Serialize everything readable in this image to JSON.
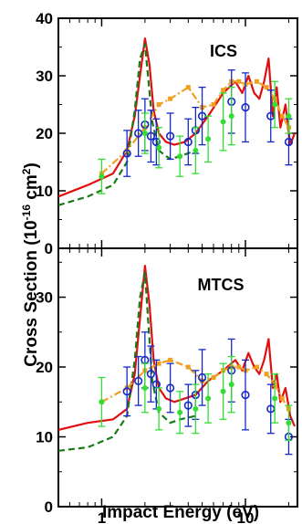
{
  "figure": {
    "ylabel_main": "Cross Section (10",
    "ylabel_exp": "-16",
    "ylabel_unit": " cm",
    "ylabel_exp2": "2",
    "ylabel_close": ")",
    "xlabel": "Impact Energy (eV)"
  },
  "colors": {
    "red_line": "#e01010",
    "green_dash": "#1a7a1a",
    "orange_dashdot": "#f0a020",
    "blue_circles": "#1428c8",
    "green_points": "#33dd33"
  },
  "chart_data": [
    {
      "type": "line",
      "panel": "top",
      "annotation": "ICS",
      "x_scale": "log",
      "xlim": [
        0.5,
        23
      ],
      "ylim": [
        0,
        40
      ],
      "yticks": [
        "0",
        "10",
        "20",
        "30",
        "40"
      ],
      "xticks": [],
      "series": [
        {
          "style": "solid",
          "color": "#e01010",
          "x": [
            0.5,
            0.8,
            1.2,
            1.5,
            1.7,
            1.85,
            2.0,
            2.15,
            2.3,
            2.5,
            2.8,
            3.2,
            3.8,
            4.5,
            5.5,
            7,
            8.5,
            9.5,
            10.5,
            11.5,
            12.5,
            13.5,
            14.5,
            15.5,
            16.5,
            17.5,
            19,
            20.5,
            22
          ],
          "y": [
            9,
            11,
            13,
            17,
            23,
            30,
            36.5,
            32,
            24,
            20,
            18.5,
            18,
            18.5,
            20,
            23,
            27,
            29,
            27,
            30,
            27,
            26,
            29,
            33,
            23,
            28,
            21,
            25,
            18,
            20
          ]
        },
        {
          "style": "dashed",
          "color": "#1a7a1a",
          "x": [
            0.5,
            0.8,
            1.2,
            1.5,
            1.7,
            1.85,
            2.0,
            2.1,
            2.25,
            2.5,
            3.0,
            3.5,
            4.5
          ],
          "y": [
            7.5,
            9,
            11,
            15,
            24,
            33,
            35.5,
            30,
            22,
            17,
            15.5,
            16,
            17
          ]
        },
        {
          "style": "dashdot",
          "color": "#f0a020",
          "x": [
            1.0,
            1.5,
            2.0,
            2.5,
            3.0,
            4.0,
            5.0,
            6.0,
            7.0,
            8.0,
            9.0,
            10.0,
            12.0,
            14.0,
            16.0,
            18.0,
            20.0
          ],
          "y": [
            13,
            17,
            21,
            25,
            26,
            28,
            24.5,
            25,
            27.5,
            29,
            29,
            28.5,
            29,
            28,
            26,
            23,
            21
          ]
        },
        {
          "style": "open-circles",
          "color": "#1428c8",
          "x": [
            1.5,
            1.8,
            2.0,
            2.2,
            2.4,
            3.0,
            4.0,
            4.5,
            5.0,
            8.0,
            10.0,
            15.0,
            20.0
          ],
          "y": [
            16.5,
            20,
            21.5,
            19.5,
            18.5,
            19.5,
            18.5,
            20.5,
            23,
            25.5,
            24.5,
            23,
            18.5
          ],
          "err": [
            4,
            4,
            4.5,
            4.5,
            4,
            4,
            4,
            4,
            5,
            5.5,
            6,
            4.5,
            4
          ]
        },
        {
          "style": "filled-points",
          "color": "#33dd33",
          "x": [
            1.0,
            2.0,
            2.5,
            3.5,
            4.5,
            5.5,
            7.0,
            8.0,
            16.0,
            20.0
          ],
          "y": [
            12.5,
            20,
            17.5,
            16,
            17,
            19,
            22,
            23,
            25,
            23
          ],
          "err": [
            3,
            3.5,
            3.5,
            3.5,
            4,
            4,
            5,
            5,
            4,
            3
          ]
        }
      ]
    },
    {
      "type": "line",
      "panel": "bottom",
      "annotation": "MTCS",
      "x_scale": "log",
      "xlim": [
        0.5,
        23
      ],
      "ylim": [
        0,
        37
      ],
      "yticks": [
        "0",
        "10",
        "20",
        "30"
      ],
      "xticks": [
        "1",
        "10"
      ],
      "series": [
        {
          "style": "solid",
          "color": "#e01010",
          "x": [
            0.5,
            0.8,
            1.2,
            1.5,
            1.7,
            1.85,
            2.0,
            2.15,
            2.3,
            2.5,
            2.8,
            3.2,
            3.8,
            4.5,
            5.5,
            7,
            8.5,
            9.5,
            10.5,
            11.5,
            12.5,
            13.5,
            14.5,
            15.5,
            16.5,
            17.5,
            19,
            20.5,
            22
          ],
          "y": [
            11,
            12,
            12.5,
            14,
            19,
            27,
            34.5,
            29,
            21,
            17,
            15.5,
            15,
            15.5,
            16,
            18,
            19.5,
            21,
            19.5,
            22,
            20,
            19,
            21,
            24,
            17,
            19,
            15,
            17,
            13,
            11.5
          ]
        },
        {
          "style": "dashed",
          "color": "#1a7a1a",
          "x": [
            0.5,
            0.8,
            1.2,
            1.5,
            1.7,
            1.85,
            2.0,
            2.1,
            2.25,
            2.5,
            3.0,
            3.5,
            4.5
          ],
          "y": [
            8,
            8.5,
            10,
            13,
            21,
            30,
            33.5,
            27,
            18,
            13.5,
            12,
            12.5,
            13
          ]
        },
        {
          "style": "dashdot",
          "color": "#f0a020",
          "x": [
            1.0,
            1.5,
            2.0,
            2.5,
            3.0,
            4.0,
            5.0,
            6.0,
            7.0,
            8.0,
            9.0,
            10.0,
            12.0,
            14.0,
            16.0,
            18.0,
            20.0
          ],
          "y": [
            15,
            17,
            19.5,
            20.5,
            21,
            20,
            18,
            18.5,
            19.5,
            20,
            20,
            19.5,
            20,
            19,
            17.5,
            15.5,
            14
          ]
        },
        {
          "style": "open-circles",
          "color": "#1428c8",
          "x": [
            1.5,
            1.8,
            2.0,
            2.2,
            2.4,
            3.0,
            4.0,
            4.5,
            5.0,
            8.0,
            10.0,
            15.0,
            20.0
          ],
          "y": [
            16.5,
            18,
            21,
            19,
            17.5,
            17,
            14.5,
            16,
            18.5,
            19.5,
            16,
            14,
            10
          ],
          "err": [
            3.5,
            3.5,
            4,
            4,
            3.5,
            3.5,
            3,
            3.5,
            4,
            4.5,
            5,
            3.5,
            2.5
          ]
        },
        {
          "style": "filled-points",
          "color": "#33dd33",
          "x": [
            1.0,
            2.0,
            2.5,
            3.5,
            4.5,
            5.5,
            7.0,
            8.0,
            16.0,
            20.0
          ],
          "y": [
            15,
            17,
            14,
            13.5,
            14,
            15.5,
            16.5,
            17.5,
            15.5,
            12
          ],
          "err": [
            3.5,
            3.5,
            3,
            3,
            3.5,
            3.5,
            4,
            4,
            3.5,
            2.5
          ]
        }
      ]
    }
  ]
}
